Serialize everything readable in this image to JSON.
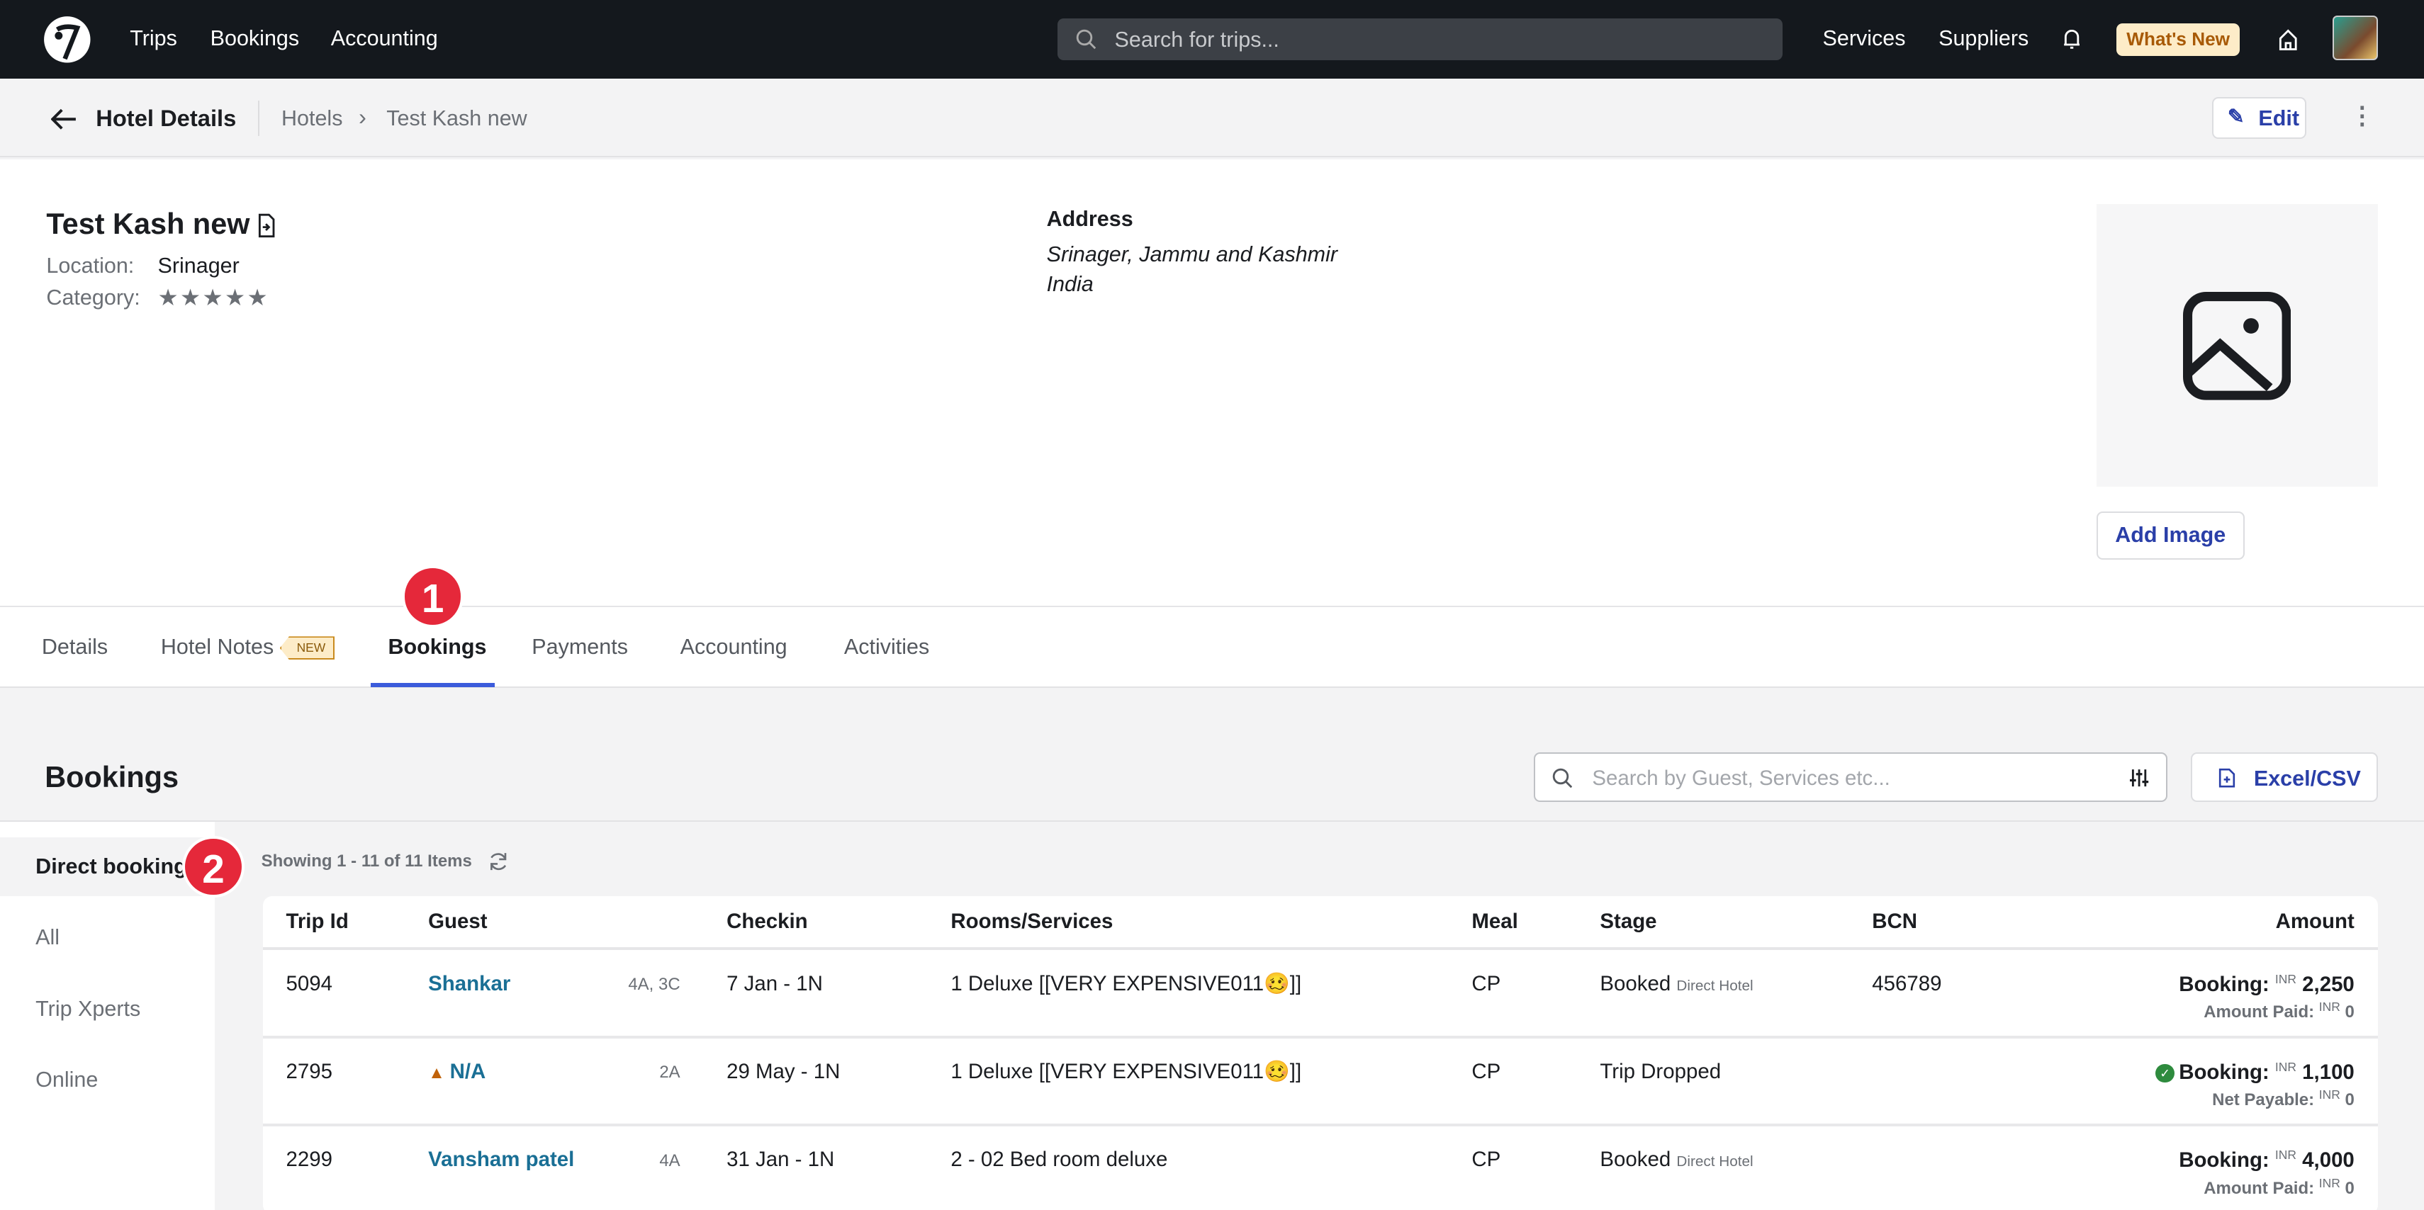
{
  "topnav": {
    "links": [
      "Trips",
      "Bookings",
      "Accounting"
    ],
    "search_placeholder": "Search for trips...",
    "right_links": [
      "Services",
      "Suppliers"
    ],
    "whats_new": "What's New"
  },
  "subheader": {
    "title": "Hotel Details",
    "breadcrumb": [
      "Hotels",
      "Test Kash new"
    ],
    "edit": "Edit"
  },
  "hotel": {
    "name": "Test Kash new",
    "location_label": "Location:",
    "location": "Srinager",
    "category_label": "Category:",
    "stars": 5,
    "stars_text": "★★★★★",
    "address_label": "Address",
    "address_line1": "Srinager, Jammu and Kashmir",
    "address_line2": "India",
    "add_image": "Add Image"
  },
  "tabs": {
    "items": [
      "Details",
      "Hotel Notes",
      "Bookings",
      "Payments",
      "Accounting",
      "Activities"
    ],
    "new_badge": "NEW",
    "active": "Bookings"
  },
  "annotations": [
    "1",
    "2"
  ],
  "bookings": {
    "title": "Bookings",
    "search_placeholder": "Search by Guest, Services etc...",
    "export": "Excel/CSV",
    "showing": "Showing 1 - 11 of 11 Items",
    "filters": [
      "Direct booking",
      "All",
      "Trip Xperts",
      "Online"
    ],
    "columns": [
      "Trip Id",
      "Guest",
      "Checkin",
      "Rooms/Services",
      "Meal",
      "Stage",
      "BCN",
      "Amount"
    ],
    "rows": [
      {
        "trip_id": "5094",
        "guest": "Shankar",
        "pax": "4A, 3C",
        "checkin": "7 Jan - 1N",
        "rooms": "1 Deluxe [[VERY EXPENSIVE011🥴]]",
        "meal": "CP",
        "stage": "Booked",
        "stage_sub": "Direct Hotel",
        "bcn": "456789",
        "amount_label": "Booking:",
        "currency": "INR",
        "amount": "2,250",
        "sub_label": "Amount Paid:",
        "sub_amount": "0"
      },
      {
        "trip_id": "2795",
        "guest": "N/A",
        "pax": "2A",
        "checkin": "29 May - 1N",
        "rooms": "1 Deluxe [[VERY EXPENSIVE011🥴]]",
        "meal": "CP",
        "stage": "Trip Dropped",
        "stage_sub": "",
        "bcn": "",
        "amount_label": "Booking:",
        "currency": "INR",
        "amount": "1,100",
        "sub_label": "Net Payable:",
        "sub_amount": "0"
      },
      {
        "trip_id": "2299",
        "guest": "Vansham patel",
        "pax": "4A",
        "checkin": "31 Jan - 1N",
        "rooms": "2 - 02 Bed room deluxe",
        "meal": "CP",
        "stage": "Booked",
        "stage_sub": "Direct Hotel",
        "bcn": "",
        "amount_label": "Booking:",
        "currency": "INR",
        "amount": "4,000",
        "sub_label": "Amount Paid:",
        "sub_amount": "0"
      }
    ]
  }
}
